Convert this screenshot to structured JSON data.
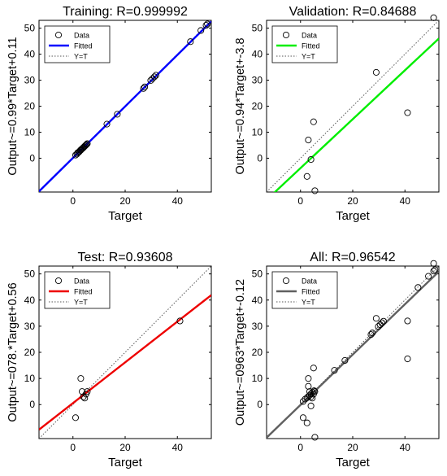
{
  "chart_data": [
    {
      "type": "scatter",
      "title": "Training: R=0.999992",
      "xlabel": "Target",
      "ylabel": "Output~=0.99*Target+0.11",
      "xlim": [
        -13,
        53
      ],
      "ylim": [
        -13,
        53
      ],
      "xticks": [
        0,
        20,
        40
      ],
      "yticks": [
        0,
        10,
        20,
        30,
        40,
        50
      ],
      "grid": false,
      "legend": {
        "position": "top-left",
        "entries": [
          "Data",
          "Fitted",
          "Y=T"
        ]
      },
      "fit": {
        "slope": 0.99,
        "intercept": 0.11,
        "color": "#0000ff"
      },
      "points": [
        [
          1.0,
          1.2
        ],
        [
          1.5,
          1.6
        ],
        [
          1.8,
          2.1
        ],
        [
          2.2,
          2.3
        ],
        [
          2.5,
          2.6
        ],
        [
          2.8,
          3.0
        ],
        [
          3.0,
          3.1
        ],
        [
          3.2,
          3.4
        ],
        [
          3.5,
          3.6
        ],
        [
          3.8,
          3.9
        ],
        [
          4.0,
          4.1
        ],
        [
          4.3,
          4.4
        ],
        [
          4.6,
          4.7
        ],
        [
          4.9,
          5.0
        ],
        [
          5.2,
          5.3
        ],
        [
          5.5,
          5.6
        ],
        [
          13.0,
          13.1
        ],
        [
          17.0,
          16.9
        ],
        [
          27.0,
          26.8
        ],
        [
          27.5,
          27.4
        ],
        [
          29.8,
          29.9
        ],
        [
          30.5,
          30.6
        ],
        [
          31.2,
          31.3
        ],
        [
          31.8,
          31.9
        ],
        [
          45.0,
          44.8
        ],
        [
          49.0,
          49.1
        ],
        [
          51.0,
          51.1
        ],
        [
          51.5,
          51.6
        ]
      ]
    },
    {
      "type": "scatter",
      "title": "Validation: R=0.84688",
      "xlabel": "Target",
      "ylabel": "Output~=0.94*Target+-3.8",
      "xlim": [
        -13,
        53
      ],
      "ylim": [
        -13,
        53
      ],
      "xticks": [
        0,
        20,
        40
      ],
      "yticks": [
        0,
        10,
        20,
        30,
        40,
        50
      ],
      "grid": false,
      "legend": {
        "position": "top-left",
        "entries": [
          "Data",
          "Fitted",
          "Y=T"
        ]
      },
      "fit": {
        "slope": 0.94,
        "intercept": -3.8,
        "color": "#00ee00"
      },
      "points": [
        [
          3,
          7
        ],
        [
          2.5,
          -7
        ],
        [
          4,
          -0.5
        ],
        [
          5,
          14
        ],
        [
          5.5,
          -12.5
        ],
        [
          29,
          33
        ],
        [
          41,
          17.5
        ],
        [
          51,
          54
        ]
      ]
    },
    {
      "type": "scatter",
      "title": "Test: R=0.93608",
      "xlabel": "Target",
      "ylabel": "Output~=078.*Target+0.56",
      "xlim": [
        -13,
        53
      ],
      "ylim": [
        -13,
        53
      ],
      "xticks": [
        0,
        20,
        40
      ],
      "yticks": [
        0,
        10,
        20,
        30,
        40,
        50
      ],
      "grid": false,
      "legend": {
        "position": "top-left",
        "entries": [
          "Data",
          "Fitted",
          "Y=T"
        ]
      },
      "fit": {
        "slope": 0.78,
        "intercept": 0.56,
        "color": "#ee0000"
      },
      "points": [
        [
          1,
          -5
        ],
        [
          3,
          10
        ],
        [
          3.5,
          5
        ],
        [
          4,
          3
        ],
        [
          4.5,
          2.5
        ],
        [
          5,
          4
        ],
        [
          5.5,
          5
        ],
        [
          41,
          32
        ]
      ]
    },
    {
      "type": "scatter",
      "title": "All: R=0.96542",
      "xlabel": "Target",
      "ylabel": "Output~=0963*Target+-0.12",
      "xlim": [
        -13,
        53
      ],
      "ylim": [
        -13,
        53
      ],
      "xticks": [
        0,
        20,
        40
      ],
      "yticks": [
        0,
        10,
        20,
        30,
        40,
        50
      ],
      "grid": false,
      "legend": {
        "position": "top-left",
        "entries": [
          "Data",
          "Fitted",
          "Y=T"
        ]
      },
      "fit": {
        "slope": 0.963,
        "intercept": -0.12,
        "color": "#606060"
      },
      "points": [
        [
          1.0,
          1.2
        ],
        [
          1.8,
          2.1
        ],
        [
          2.5,
          2.6
        ],
        [
          3.0,
          3.1
        ],
        [
          3.5,
          3.6
        ],
        [
          4.0,
          4.1
        ],
        [
          4.6,
          4.7
        ],
        [
          5.2,
          5.3
        ],
        [
          13.0,
          13.1
        ],
        [
          17.0,
          16.9
        ],
        [
          27.0,
          26.8
        ],
        [
          27.5,
          27.4
        ],
        [
          29.8,
          29.9
        ],
        [
          30.5,
          30.6
        ],
        [
          31.2,
          31.3
        ],
        [
          31.8,
          31.9
        ],
        [
          45.0,
          44.8
        ],
        [
          49.0,
          49.1
        ],
        [
          51.0,
          51.1
        ],
        [
          51.5,
          51.6
        ],
        [
          3,
          7
        ],
        [
          2.5,
          -7
        ],
        [
          4,
          -0.5
        ],
        [
          5,
          14
        ],
        [
          5.5,
          -12.5
        ],
        [
          29,
          33
        ],
        [
          41,
          17.5
        ],
        [
          51,
          54
        ],
        [
          1,
          -5
        ],
        [
          3,
          10
        ],
        [
          3.5,
          5
        ],
        [
          4,
          3
        ],
        [
          4.5,
          2.5
        ],
        [
          5,
          4
        ],
        [
          5.5,
          5
        ],
        [
          41,
          32
        ]
      ]
    }
  ]
}
